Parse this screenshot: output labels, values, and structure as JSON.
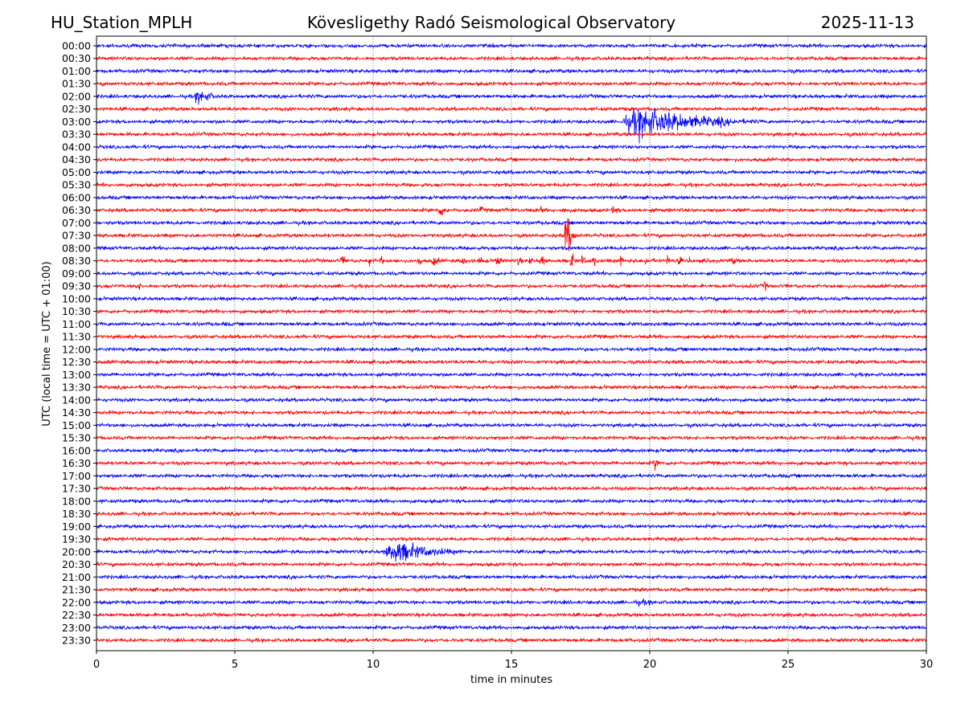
{
  "header": {
    "station": "HU_Station_MPLH",
    "title": "Kövesligethy Radó Seismological Observatory",
    "date": "2025-11-13"
  },
  "chart_data": {
    "type": "line",
    "subtype": "helicorder",
    "xlabel": "time in minutes",
    "ylabel": "UTC (local time = UTC + 01:00)",
    "xlim": [
      0,
      30
    ],
    "xticks": [
      0,
      5,
      10,
      15,
      20,
      25,
      30
    ],
    "grid": "vertical dotted at 5-minute ticks",
    "colors": [
      "#0000ff",
      "#ff0000"
    ],
    "rows": [
      "00:00",
      "00:30",
      "01:00",
      "01:30",
      "02:00",
      "02:30",
      "03:00",
      "03:30",
      "04:00",
      "04:30",
      "05:00",
      "05:30",
      "06:00",
      "06:30",
      "07:00",
      "07:30",
      "08:00",
      "08:30",
      "09:00",
      "09:30",
      "10:00",
      "10:30",
      "11:00",
      "11:30",
      "12:00",
      "12:30",
      "13:00",
      "13:30",
      "14:00",
      "14:30",
      "15:00",
      "15:30",
      "16:00",
      "16:30",
      "17:00",
      "17:30",
      "18:00",
      "18:30",
      "19:00",
      "19:30",
      "20:00",
      "20:30",
      "21:00",
      "21:30",
      "22:00",
      "22:30",
      "23:00",
      "23:30"
    ],
    "noise_level": 1,
    "events": [
      {
        "row": "01:00",
        "start": 7.0,
        "dur": 0.6,
        "amp": 1.5
      },
      {
        "row": "02:00",
        "start": 3.5,
        "dur": 1.6,
        "amp": 7
      },
      {
        "row": "03:00",
        "start": 18.9,
        "dur": 6.5,
        "amp": 14
      },
      {
        "row": "03:00",
        "start": 22.3,
        "dur": 1.6,
        "amp": 5
      },
      {
        "row": "06:30",
        "start": 12.3,
        "dur": 0.9,
        "amp": 6
      },
      {
        "row": "06:30",
        "start": 13.8,
        "dur": 0.6,
        "amp": 4
      },
      {
        "row": "06:30",
        "start": 14.7,
        "dur": 0.5,
        "amp": 3
      },
      {
        "row": "06:30",
        "start": 16.0,
        "dur": 0.7,
        "amp": 3.5
      },
      {
        "row": "06:30",
        "start": 16.8,
        "dur": 0.5,
        "amp": 4
      },
      {
        "row": "06:30",
        "start": 18.6,
        "dur": 0.5,
        "amp": 5
      },
      {
        "row": "07:30",
        "start": 16.9,
        "dur": 0.6,
        "amp": 22
      },
      {
        "row": "08:30",
        "start": 8.8,
        "dur": 0.5,
        "amp": 6
      },
      {
        "row": "08:30",
        "start": 9.8,
        "dur": 0.3,
        "amp": 6
      },
      {
        "row": "08:30",
        "start": 10.2,
        "dur": 0.5,
        "amp": 5
      },
      {
        "row": "08:30",
        "start": 11.6,
        "dur": 0.4,
        "amp": 6
      },
      {
        "row": "08:30",
        "start": 12.1,
        "dur": 0.6,
        "amp": 6
      },
      {
        "row": "08:30",
        "start": 13.2,
        "dur": 0.4,
        "amp": 6
      },
      {
        "row": "08:30",
        "start": 13.8,
        "dur": 0.6,
        "amp": 5
      },
      {
        "row": "08:30",
        "start": 14.4,
        "dur": 0.5,
        "amp": 7
      },
      {
        "row": "08:30",
        "start": 15.2,
        "dur": 0.4,
        "amp": 5
      },
      {
        "row": "08:30",
        "start": 15.6,
        "dur": 0.4,
        "amp": 5
      },
      {
        "row": "08:30",
        "start": 16.0,
        "dur": 0.5,
        "amp": 7
      },
      {
        "row": "08:30",
        "start": 17.1,
        "dur": 0.4,
        "amp": 9
      },
      {
        "row": "08:30",
        "start": 17.5,
        "dur": 0.4,
        "amp": 6
      },
      {
        "row": "08:30",
        "start": 17.9,
        "dur": 0.4,
        "amp": 7
      },
      {
        "row": "08:30",
        "start": 18.9,
        "dur": 0.4,
        "amp": 6
      },
      {
        "row": "08:30",
        "start": 19.3,
        "dur": 0.4,
        "amp": 5
      },
      {
        "row": "08:30",
        "start": 19.8,
        "dur": 0.3,
        "amp": 5
      },
      {
        "row": "08:30",
        "start": 20.1,
        "dur": 0.3,
        "amp": 4
      },
      {
        "row": "08:30",
        "start": 20.6,
        "dur": 0.4,
        "amp": 6
      },
      {
        "row": "08:30",
        "start": 21.0,
        "dur": 0.4,
        "amp": 5
      },
      {
        "row": "08:30",
        "start": 21.4,
        "dur": 0.3,
        "amp": 5
      },
      {
        "row": "08:30",
        "start": 22.0,
        "dur": 0.3,
        "amp": 6
      },
      {
        "row": "08:30",
        "start": 22.9,
        "dur": 0.8,
        "amp": 4
      },
      {
        "row": "09:00",
        "start": 22.6,
        "dur": 0.8,
        "amp": 1.8
      },
      {
        "row": "09:30",
        "start": 1.3,
        "dur": 1.1,
        "amp": 4
      },
      {
        "row": "09:30",
        "start": 24.1,
        "dur": 0.3,
        "amp": 6
      },
      {
        "row": "09:30",
        "start": 24.9,
        "dur": 0.3,
        "amp": 3
      },
      {
        "row": "11:00",
        "start": 4.6,
        "dur": 0.4,
        "amp": 3
      },
      {
        "row": "11:00",
        "start": 27.9,
        "dur": 0.3,
        "amp": 4
      },
      {
        "row": "11:30",
        "start": 19.9,
        "dur": 0.6,
        "amp": 2
      },
      {
        "row": "16:30",
        "start": 20.1,
        "dur": 0.6,
        "amp": 6
      },
      {
        "row": "20:00",
        "start": 10.3,
        "dur": 4.3,
        "amp": 10
      },
      {
        "row": "20:00",
        "start": 13.0,
        "dur": 0.9,
        "amp": 2.5
      },
      {
        "row": "22:00",
        "start": 19.3,
        "dur": 2.8,
        "amp": 3
      }
    ]
  }
}
